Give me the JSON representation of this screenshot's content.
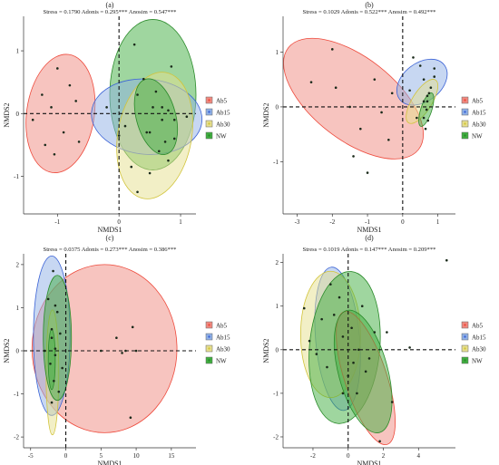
{
  "legend_labels": [
    "Ab5",
    "Ab15",
    "Ab30",
    "NW"
  ],
  "colors": {
    "Ab5": "#f08a80",
    "Ab15": "#8fb0e6",
    "Ab30": "#e6df8e",
    "NW": "#3fae3f",
    "Ab5_dot": "#ee4a3c",
    "Ab15_dot": "#3a62d6",
    "Ab30_dot": "#d2c43a",
    "NW_dot": "#2a8a2a"
  },
  "chart_data": [
    {
      "type": "scatter",
      "panel": "(a)",
      "stats": "Stress = 0.1790   Adonis = 0.295***   Anosim = 0.547***",
      "xlabel": "NMDS1",
      "ylabel": "NMDS2",
      "xlim": [
        -1.55,
        1.25
      ],
      "ylim": [
        -1.6,
        1.55
      ],
      "xticks": [
        -1,
        0,
        1
      ],
      "yticks": [
        -1,
        0,
        1
      ],
      "legend": "right",
      "ellipses": [
        {
          "group": "Ab5",
          "cx": -0.95,
          "cy": 0.0,
          "rx": 0.55,
          "ry": 0.95,
          "angle": -8
        },
        {
          "group": "NW",
          "cx": 0.55,
          "cy": 0.3,
          "rx": 0.7,
          "ry": 1.2,
          "angle": 0
        },
        {
          "group": "Ab15",
          "cx": 0.45,
          "cy": -0.05,
          "rx": 0.9,
          "ry": 0.6,
          "angle": -5
        },
        {
          "group": "Ab30",
          "cx": 0.58,
          "cy": -0.35,
          "rx": 0.6,
          "ry": 1.02,
          "angle": -10
        },
        {
          "group": "NW",
          "cx": 0.6,
          "cy": -0.05,
          "rx": 0.32,
          "ry": 0.62,
          "angle": 15
        }
      ],
      "points": [
        {
          "group": "Ab5",
          "x": -1.4,
          "y": -0.1
        },
        {
          "group": "Ab5",
          "x": -1.1,
          "y": 0.1
        },
        {
          "group": "Ab5",
          "x": -1.0,
          "y": 0.72
        },
        {
          "group": "Ab5",
          "x": -0.9,
          "y": -0.3
        },
        {
          "group": "Ab5",
          "x": -1.2,
          "y": -0.5
        },
        {
          "group": "Ab5",
          "x": -0.7,
          "y": 0.2
        },
        {
          "group": "Ab5",
          "x": -0.65,
          "y": -0.45
        },
        {
          "group": "Ab5",
          "x": -1.05,
          "y": -0.65
        },
        {
          "group": "Ab5",
          "x": -0.8,
          "y": 0.45
        },
        {
          "group": "Ab5",
          "x": -1.25,
          "y": 0.3
        },
        {
          "group": "Ab15",
          "x": -0.2,
          "y": 0.1
        },
        {
          "group": "Ab15",
          "x": 0.1,
          "y": -0.2
        },
        {
          "group": "Ab15",
          "x": 0.3,
          "y": 0.3
        },
        {
          "group": "Ab15",
          "x": 0.7,
          "y": 0.1
        },
        {
          "group": "Ab15",
          "x": 0.9,
          "y": -0.1
        },
        {
          "group": "Ab15",
          "x": 0.0,
          "y": -0.35
        },
        {
          "group": "Ab15",
          "x": 0.45,
          "y": -0.3
        },
        {
          "group": "Ab30",
          "x": 0.2,
          "y": -0.85
        },
        {
          "group": "Ab30",
          "x": 0.5,
          "y": -0.95
        },
        {
          "group": "Ab30",
          "x": 0.8,
          "y": -0.75
        },
        {
          "group": "Ab30",
          "x": 0.3,
          "y": -1.25
        },
        {
          "group": "Ab30",
          "x": 0.65,
          "y": -0.6
        },
        {
          "group": "Ab30",
          "x": 0.9,
          "y": -0.4
        },
        {
          "group": "NW",
          "x": 0.4,
          "y": 0.55
        },
        {
          "group": "NW",
          "x": 0.6,
          "y": 0.35
        },
        {
          "group": "NW",
          "x": 0.7,
          "y": -0.1
        },
        {
          "group": "NW",
          "x": 0.5,
          "y": -0.3
        },
        {
          "group": "NW",
          "x": 0.8,
          "y": 0.05
        },
        {
          "group": "NW",
          "x": 0.55,
          "y": 0.1
        },
        {
          "group": "NW",
          "x": 0.75,
          "y": -0.45
        },
        {
          "group": "NW",
          "x": 1.1,
          "y": -0.05
        },
        {
          "group": "NW",
          "x": 0.25,
          "y": 1.1
        },
        {
          "group": "NW",
          "x": 0.85,
          "y": 0.75
        }
      ]
    },
    {
      "type": "scatter",
      "panel": "(b)",
      "stats": "Stress = 0.1029   Adonis = 0.522***   Anosim = 0.492***",
      "xlabel": "NMDS1",
      "ylabel": "NMDS2",
      "xlim": [
        -3.4,
        1.5
      ],
      "ylim": [
        -1.95,
        1.65
      ],
      "xticks": [
        -3,
        -2,
        -1,
        0,
        1
      ],
      "yticks": [
        -1,
        0,
        1
      ],
      "legend": "right",
      "ellipses": [
        {
          "group": "Ab5",
          "cx": -1.4,
          "cy": 0.15,
          "rx": 2.35,
          "ry": 0.75,
          "angle": -38
        },
        {
          "group": "Ab15",
          "cx": 0.55,
          "cy": 0.45,
          "rx": 0.8,
          "ry": 0.35,
          "angle": 38
        },
        {
          "group": "Ab30",
          "cx": 0.55,
          "cy": 0.1,
          "rx": 0.72,
          "ry": 0.18,
          "angle": 58
        },
        {
          "group": "NW",
          "cx": 0.67,
          "cy": -0.05,
          "rx": 0.5,
          "ry": 0.1,
          "angle": 72
        }
      ],
      "points": [
        {
          "group": "Ab5",
          "x": -2.6,
          "y": 0.45
        },
        {
          "group": "Ab5",
          "x": -2.0,
          "y": 1.05
        },
        {
          "group": "Ab5",
          "x": -1.9,
          "y": 0.35
        },
        {
          "group": "Ab5",
          "x": -1.5,
          "y": 0.0
        },
        {
          "group": "Ab5",
          "x": -1.2,
          "y": -0.4
        },
        {
          "group": "Ab5",
          "x": -1.0,
          "y": -1.2
        },
        {
          "group": "Ab5",
          "x": -0.6,
          "y": -0.1
        },
        {
          "group": "Ab5",
          "x": -0.4,
          "y": -0.6
        },
        {
          "group": "Ab5",
          "x": -1.4,
          "y": -0.9
        },
        {
          "group": "Ab5",
          "x": -0.8,
          "y": 0.5
        },
        {
          "group": "Ab5",
          "x": -0.3,
          "y": 0.25
        },
        {
          "group": "Ab15",
          "x": 0.3,
          "y": 0.9
        },
        {
          "group": "Ab15",
          "x": 0.6,
          "y": 0.5
        },
        {
          "group": "Ab15",
          "x": 0.9,
          "y": 0.7
        },
        {
          "group": "Ab15",
          "x": 0.2,
          "y": 0.3
        },
        {
          "group": "Ab15",
          "x": 0.7,
          "y": 0.2
        },
        {
          "group": "Ab15",
          "x": 0.5,
          "y": 0.75
        },
        {
          "group": "Ab30",
          "x": 0.4,
          "y": -0.2
        },
        {
          "group": "Ab30",
          "x": 0.6,
          "y": 0.1
        },
        {
          "group": "Ab30",
          "x": 0.8,
          "y": 0.35
        },
        {
          "group": "Ab30",
          "x": 0.9,
          "y": 0.55
        },
        {
          "group": "NW",
          "x": 0.6,
          "y": -0.2
        },
        {
          "group": "NW",
          "x": 0.65,
          "y": -0.4
        },
        {
          "group": "NW",
          "x": 0.7,
          "y": 0.1
        },
        {
          "group": "NW",
          "x": 0.75,
          "y": 0.25
        },
        {
          "group": "NW",
          "x": 0.68,
          "y": -0.05
        },
        {
          "group": "NW",
          "x": 0.72,
          "y": -0.25
        }
      ]
    },
    {
      "type": "scatter",
      "panel": "(c)",
      "stats": "Stress = 0.0375   Adonis = 0.273***   Anosim = 0.386***",
      "xlabel": "NMDS1",
      "ylabel": "NMDS2",
      "xlim": [
        -6.0,
        18.5
      ],
      "ylim": [
        -2.25,
        2.25
      ],
      "xticks": [
        -5,
        0,
        5,
        10,
        15
      ],
      "yticks": [
        -2,
        -1,
        0,
        1,
        2
      ],
      "legend": "right",
      "ellipses": [
        {
          "group": "Ab5",
          "cx": 5.5,
          "cy": 0.05,
          "rx": 10.3,
          "ry": 1.95,
          "angle": 0
        },
        {
          "group": "Ab15",
          "cx": -2.0,
          "cy": 0.35,
          "rx": 2.6,
          "ry": 1.85,
          "angle": 0
        },
        {
          "group": "Ab30",
          "cx": -1.9,
          "cy": -0.5,
          "rx": 0.9,
          "ry": 1.45,
          "angle": 0
        },
        {
          "group": "NW",
          "cx": -1.2,
          "cy": 0.3,
          "rx": 2.0,
          "ry": 1.45,
          "angle": 0
        },
        {
          "group": "NW",
          "cx": -2.0,
          "cy": -0.2,
          "rx": 0.5,
          "ry": 0.7,
          "angle": 0
        }
      ],
      "points": [
        {
          "group": "Ab5",
          "x": 7.2,
          "y": 0.3
        },
        {
          "group": "Ab5",
          "x": 8.5,
          "y": 0.0
        },
        {
          "group": "Ab5",
          "x": 9.5,
          "y": 0.55
        },
        {
          "group": "Ab5",
          "x": 10.0,
          "y": 0.0
        },
        {
          "group": "Ab5",
          "x": 9.2,
          "y": -1.55
        },
        {
          "group": "Ab5",
          "x": 5.0,
          "y": 0.0
        },
        {
          "group": "Ab5",
          "x": 8.0,
          "y": -0.05
        },
        {
          "group": "Ab15",
          "x": -2.5,
          "y": 1.2
        },
        {
          "group": "Ab15",
          "x": -1.5,
          "y": 1.05
        },
        {
          "group": "Ab15",
          "x": -2.0,
          "y": 0.5
        },
        {
          "group": "Ab15",
          "x": -3.0,
          "y": 0.0
        },
        {
          "group": "Ab30",
          "x": -2.2,
          "y": -0.3
        },
        {
          "group": "Ab30",
          "x": -1.7,
          "y": -0.7
        },
        {
          "group": "Ab30",
          "x": -2.0,
          "y": -1.2
        },
        {
          "group": "Ab30",
          "x": -1.5,
          "y": 0.05
        },
        {
          "group": "NW",
          "x": -1.8,
          "y": 1.85
        },
        {
          "group": "NW",
          "x": -1.2,
          "y": 0.9
        },
        {
          "group": "NW",
          "x": -0.8,
          "y": 0.4
        },
        {
          "group": "NW",
          "x": -1.5,
          "y": -0.1
        },
        {
          "group": "NW",
          "x": -2.0,
          "y": 0.3
        },
        {
          "group": "NW",
          "x": -0.5,
          "y": -0.4
        },
        {
          "group": "NW",
          "x": -1.0,
          "y": -0.95
        }
      ]
    },
    {
      "type": "scatter",
      "panel": "(d)",
      "stats": "Stress = 0.1019   Adonis = 0.147***   Anosim = 0.209***",
      "xlabel": "NMDS1",
      "ylabel": "NMDS2",
      "xlim": [
        -3.7,
        6.1
      ],
      "ylim": [
        -2.25,
        2.2
      ],
      "xticks": [
        -2,
        0,
        2,
        4
      ],
      "yticks": [
        -2,
        -1,
        0,
        1,
        2
      ],
      "legend": "right",
      "ellipses": [
        {
          "group": "Ab15",
          "cx": -0.6,
          "cy": 0.25,
          "rx": 1.25,
          "ry": 1.65,
          "angle": 5
        },
        {
          "group": "Ab30",
          "cx": -1.0,
          "cy": 0.35,
          "rx": 1.7,
          "ry": 1.45,
          "angle": 0
        },
        {
          "group": "NW",
          "cx": -0.2,
          "cy": 0.05,
          "rx": 2.0,
          "ry": 1.75,
          "angle": -5
        },
        {
          "group": "Ab5",
          "cx": 1.0,
          "cy": -0.65,
          "rx": 1.2,
          "ry": 1.6,
          "angle": 18
        },
        {
          "group": "NW",
          "cx": 0.85,
          "cy": -0.5,
          "rx": 1.4,
          "ry": 1.45,
          "angle": 15
        }
      ],
      "points": [
        {
          "group": "Ab5",
          "x": 1.5,
          "y": 0.4
        },
        {
          "group": "Ab5",
          "x": 2.2,
          "y": 0.4
        },
        {
          "group": "Ab5",
          "x": 1.0,
          "y": -0.5
        },
        {
          "group": "Ab5",
          "x": 0.5,
          "y": -1.0
        },
        {
          "group": "Ab5",
          "x": 1.8,
          "y": -2.1
        },
        {
          "group": "Ab5",
          "x": 5.6,
          "y": 2.05
        },
        {
          "group": "Ab5",
          "x": 2.5,
          "y": -1.2
        },
        {
          "group": "Ab15",
          "x": -1.0,
          "y": 1.5
        },
        {
          "group": "Ab15",
          "x": -0.5,
          "y": 1.2
        },
        {
          "group": "Ab15",
          "x": -1.5,
          "y": 0.7
        },
        {
          "group": "Ab15",
          "x": -0.3,
          "y": 0.3
        },
        {
          "group": "Ab15",
          "x": 0.3,
          "y": -0.3
        },
        {
          "group": "Ab30",
          "x": -2.2,
          "y": 0.2
        },
        {
          "group": "Ab30",
          "x": -2.5,
          "y": 0.95
        },
        {
          "group": "Ab30",
          "x": -1.8,
          "y": -0.1
        },
        {
          "group": "Ab30",
          "x": -1.2,
          "y": -0.4
        },
        {
          "group": "NW",
          "x": -0.8,
          "y": 0.8
        },
        {
          "group": "NW",
          "x": 0.2,
          "y": 0.5
        },
        {
          "group": "NW",
          "x": 0.6,
          "y": 0.0
        },
        {
          "group": "NW",
          "x": 1.2,
          "y": -0.2
        },
        {
          "group": "NW",
          "x": 0.0,
          "y": -0.6
        },
        {
          "group": "NW",
          "x": -0.3,
          "y": -1.0
        },
        {
          "group": "NW",
          "x": 3.5,
          "y": 0.05
        },
        {
          "group": "NW",
          "x": 0.8,
          "y": 1.0
        }
      ]
    }
  ]
}
